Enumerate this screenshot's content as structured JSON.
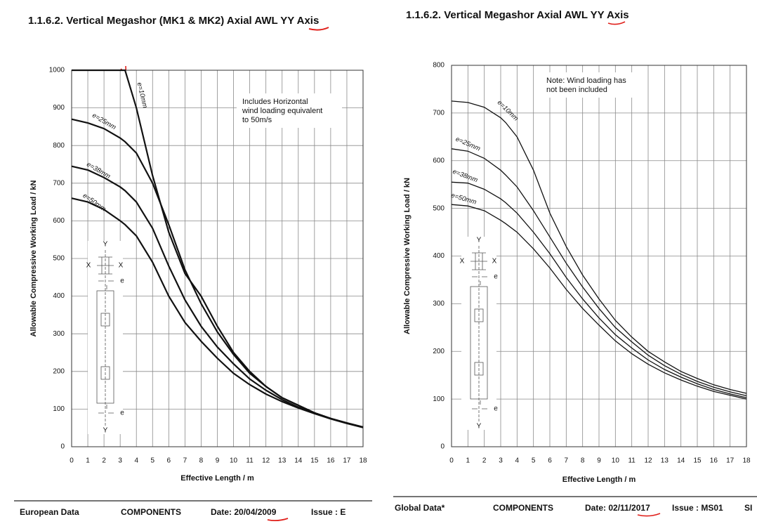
{
  "chart_data": [
    {
      "type": "line",
      "title": "1.1.6.2. Vertical Megashor (MK1 & MK2) Axial AWL YY Axis",
      "x_label": "Effective Length / m",
      "y_label": "Allowable Compressive Working Load / kN",
      "note": [
        "Includes Horizontal",
        "wind loading equivalent",
        "to 50m/s"
      ],
      "inset_labels": [
        "Y",
        "X",
        "X",
        "e",
        "e",
        "Y"
      ],
      "x": [
        0,
        1,
        2,
        3,
        3.3,
        4,
        5,
        6,
        7,
        8,
        9,
        10,
        11,
        12,
        13,
        14,
        15,
        16,
        17,
        18
      ],
      "series": [
        {
          "name": "e=10mm",
          "color": "#111111",
          "values": [
            1000,
            1000,
            1000,
            1000,
            1000,
            900,
            720,
            570,
            460,
            400,
            320,
            250,
            200,
            160,
            130,
            110,
            90,
            75,
            63,
            52
          ]
        },
        {
          "name": "e=25mm",
          "color": "#111111",
          "values": [
            870,
            860,
            845,
            820,
            810,
            780,
            700,
            590,
            470,
            380,
            305,
            245,
            195,
            160,
            130,
            110,
            90,
            75,
            63,
            52
          ]
        },
        {
          "name": "e=38mm",
          "color": "#111111",
          "values": [
            745,
            735,
            715,
            690,
            680,
            650,
            580,
            480,
            390,
            320,
            265,
            220,
            180,
            150,
            125,
            105,
            90,
            75,
            63,
            52
          ]
        },
        {
          "name": "e=50mm",
          "color": "#111111",
          "values": [
            660,
            650,
            630,
            600,
            590,
            560,
            490,
            400,
            330,
            280,
            235,
            195,
            165,
            140,
            120,
            103,
            88,
            74,
            62,
            51
          ]
        }
      ],
      "xlim": [
        0,
        18
      ],
      "xticks": [
        0,
        1,
        2,
        3,
        4,
        5,
        6,
        7,
        8,
        9,
        10,
        11,
        12,
        13,
        14,
        15,
        16,
        17,
        18
      ],
      "ylim": [
        0,
        1000
      ],
      "yticks": [
        0,
        100,
        200,
        300,
        400,
        500,
        600,
        700,
        800,
        900,
        1000
      ],
      "grid": true,
      "footer": [
        "European Data",
        "COMPONENTS",
        "Date: 20/04/2009",
        "Issue : E"
      ]
    },
    {
      "type": "line",
      "title": "1.1.6.2. Vertical Megashor Axial AWL YY Axis",
      "x_label": "Effective Length / m",
      "y_label": "Allowable Compressive Working Load / kN",
      "note": [
        "Note: Wind loading has",
        "not been included"
      ],
      "inset_labels": [
        "Y",
        "X",
        "X",
        "e",
        "e",
        "Y"
      ],
      "x": [
        0,
        1,
        2,
        3,
        3.3,
        4,
        5,
        6,
        7,
        8,
        9,
        10,
        11,
        12,
        13,
        14,
        15,
        16,
        17,
        18
      ],
      "series": [
        {
          "name": "e=10mm",
          "color": "#111111",
          "values": [
            725,
            722,
            712,
            690,
            680,
            650,
            580,
            490,
            420,
            360,
            310,
            265,
            230,
            200,
            178,
            158,
            143,
            130,
            120,
            112
          ]
        },
        {
          "name": "e=25mm",
          "color": "#111111",
          "values": [
            625,
            620,
            605,
            580,
            570,
            545,
            495,
            440,
            385,
            335,
            290,
            250,
            220,
            192,
            170,
            152,
            137,
            125,
            115,
            107
          ]
        },
        {
          "name": "e=38mm",
          "color": "#111111",
          "values": [
            555,
            553,
            540,
            520,
            512,
            490,
            450,
            405,
            355,
            310,
            270,
            235,
            207,
            182,
            162,
            146,
            132,
            120,
            111,
            103
          ]
        },
        {
          "name": "e=50mm",
          "color": "#111111",
          "values": [
            508,
            505,
            495,
            475,
            468,
            450,
            415,
            375,
            330,
            290,
            255,
            222,
            195,
            173,
            155,
            140,
            127,
            116,
            108,
            100
          ]
        }
      ],
      "xlim": [
        0,
        18
      ],
      "xticks": [
        0,
        1,
        2,
        3,
        4,
        5,
        6,
        7,
        8,
        9,
        10,
        11,
        12,
        13,
        14,
        15,
        16,
        17,
        18
      ],
      "ylim": [
        0,
        800
      ],
      "yticks": [
        0,
        100,
        200,
        300,
        400,
        500,
        600,
        700,
        800
      ],
      "grid": true,
      "footer": [
        "Global Data*",
        "COMPONENTS",
        "Date: 02/11/2017",
        "Issue : MS01",
        "SI"
      ]
    }
  ]
}
